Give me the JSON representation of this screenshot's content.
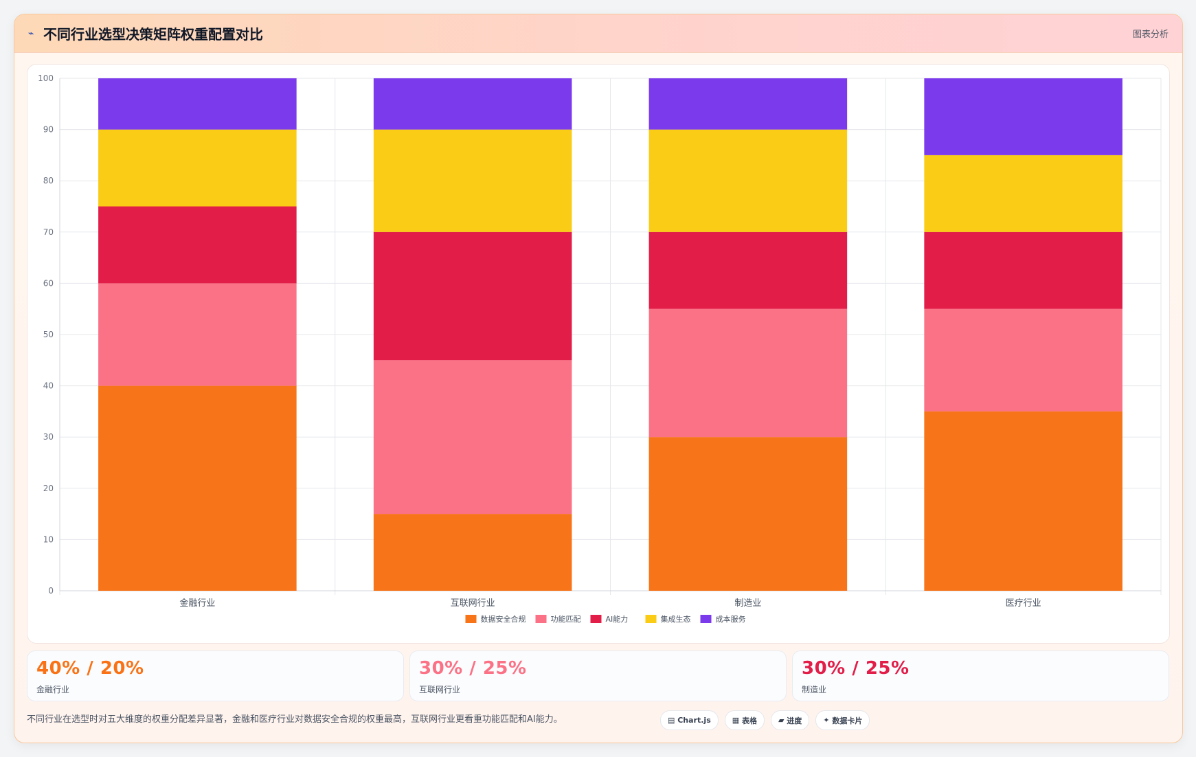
{
  "header": {
    "icon": "chart-icon",
    "title": "不同行业选型决策矩阵权重配置对比",
    "right_label": "图表分析"
  },
  "chart_data": {
    "type": "bar",
    "stacked": true,
    "title": "",
    "xlabel": "",
    "ylabel": "",
    "categories": [
      "金融行业",
      "互联网行业",
      "制造业",
      "医疗行业"
    ],
    "ylim": [
      0,
      100
    ],
    "yticks": [
      0,
      10,
      20,
      30,
      40,
      50,
      60,
      70,
      80,
      90,
      100
    ],
    "grid": true,
    "legend_position": "bottom",
    "series": [
      {
        "name": "数据安全合规",
        "color": "#f77419",
        "values": [
          40,
          15,
          30,
          35
        ]
      },
      {
        "name": "功能匹配",
        "color": "#fb7185",
        "values": [
          20,
          30,
          25,
          20
        ]
      },
      {
        "name": "AI能力",
        "color": "#e11d48",
        "values": [
          15,
          25,
          15,
          15
        ]
      },
      {
        "name": "集成生态",
        "color": "#facc15",
        "values": [
          15,
          20,
          20,
          15
        ]
      },
      {
        "name": "成本服务",
        "color": "#7c3aed",
        "values": [
          10,
          10,
          10,
          15
        ]
      }
    ]
  },
  "stats": [
    {
      "value": "40% / 20%",
      "label": "金融行业",
      "color": "#f97316"
    },
    {
      "value": "30% / 25%",
      "label": "互联网行业",
      "color": "#fb7185"
    },
    {
      "value": "30% / 25%",
      "label": "制造业",
      "color": "#e11d48"
    }
  ],
  "footer": {
    "text": "不同行业在选型时对五大维度的权重分配差异显著，金融和医疗行业对数据安全合规的权重最高，互联网行业更看重功能匹配和AI能力。",
    "tags": [
      "Chart.js",
      "表格",
      "进度",
      "数据卡片"
    ],
    "tag_icons": [
      "chart-icon",
      "table-icon",
      "progress-icon",
      "sparkle-icon"
    ]
  }
}
